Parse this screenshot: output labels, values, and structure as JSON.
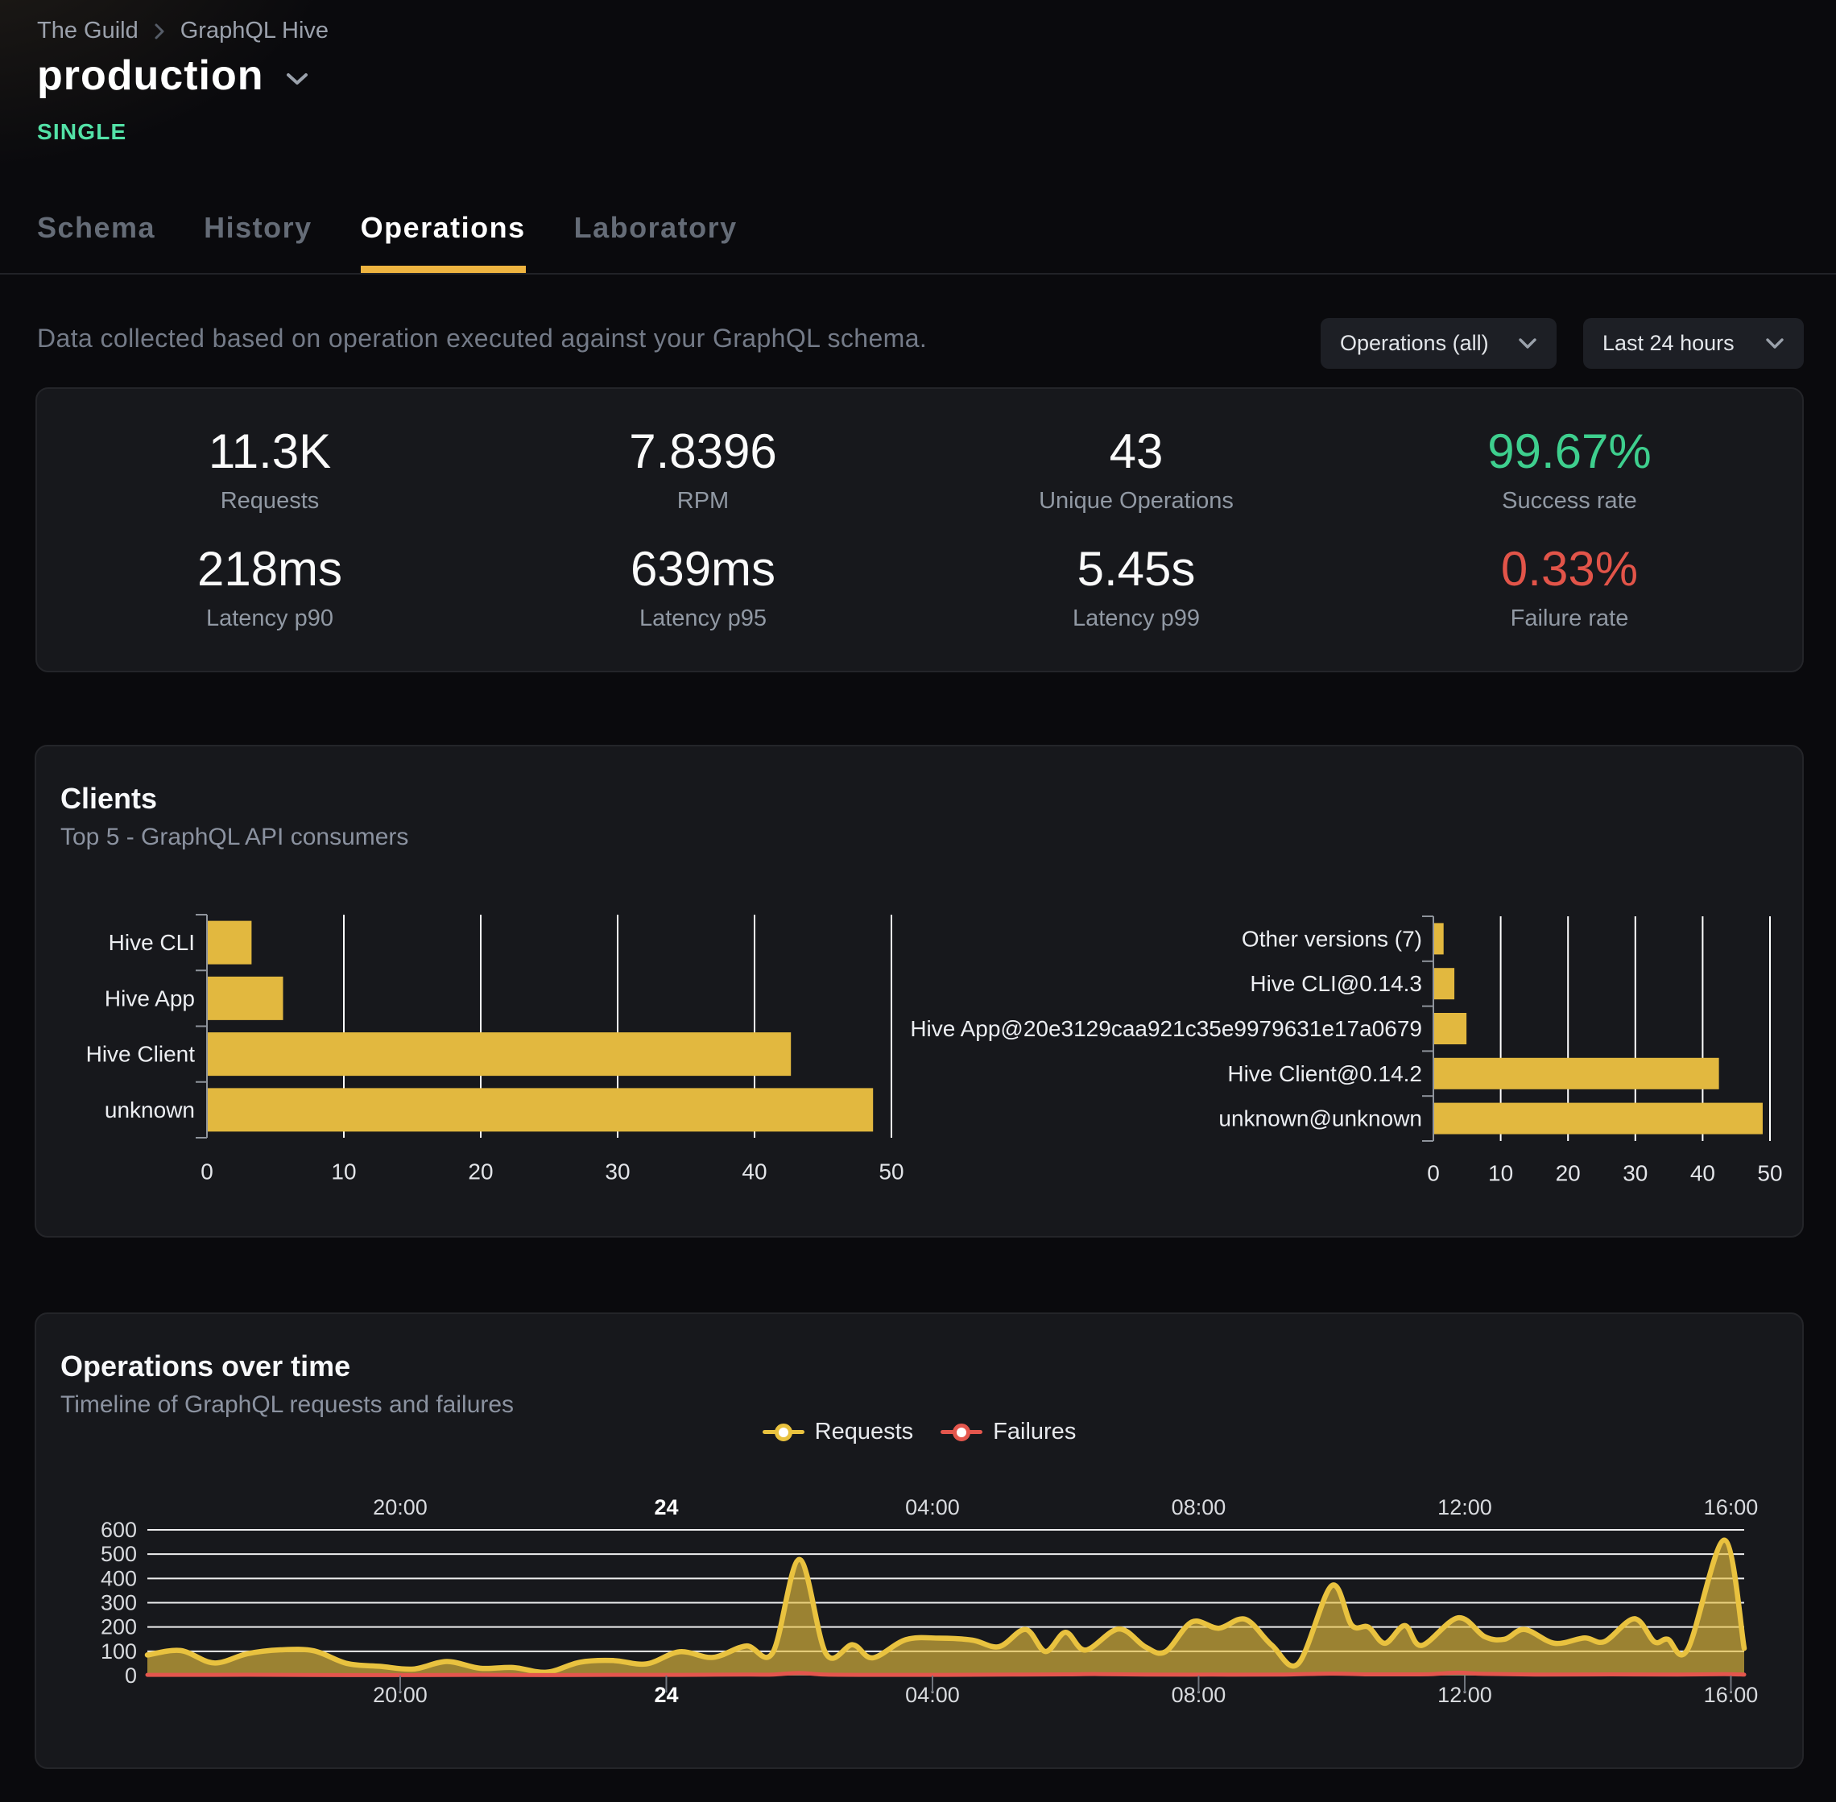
{
  "breadcrumb": {
    "items": [
      "The Guild",
      "GraphQL Hive"
    ]
  },
  "target": {
    "name": "production",
    "badge": "SINGLE"
  },
  "tabs": [
    {
      "label": "Schema",
      "active": false
    },
    {
      "label": "History",
      "active": false
    },
    {
      "label": "Operations",
      "active": true
    },
    {
      "label": "Laboratory",
      "active": false
    }
  ],
  "toolbar": {
    "description": "Data collected based on operation executed against your GraphQL schema.",
    "filters": [
      {
        "label": "Operations (all)"
      },
      {
        "label": "Last 24 hours"
      }
    ]
  },
  "stats": [
    {
      "value": "11.3K",
      "label": "Requests",
      "color": "#fafafa"
    },
    {
      "value": "7.8396",
      "label": "RPM",
      "color": "#fafafa"
    },
    {
      "value": "43",
      "label": "Unique Operations",
      "color": "#fafafa"
    },
    {
      "value": "99.67%",
      "label": "Success rate",
      "color": "#3ecf8e"
    },
    {
      "value": "218ms",
      "label": "Latency p90",
      "color": "#fafafa"
    },
    {
      "value": "639ms",
      "label": "Latency p95",
      "color": "#fafafa"
    },
    {
      "value": "5.45s",
      "label": "Latency p99",
      "color": "#fafafa"
    },
    {
      "value": "0.33%",
      "label": "Failure rate",
      "color": "#e25449"
    }
  ],
  "clients_section": {
    "title": "Clients",
    "subtitle": "Top 5 - GraphQL API consumers"
  },
  "operations_section": {
    "title": "Operations over time",
    "subtitle": "Timeline of GraphQL requests and failures"
  },
  "chart_data": [
    {
      "id": "clients-by-name",
      "type": "bar",
      "orientation": "horizontal",
      "categories": [
        "Hive CLI",
        "Hive App",
        "Hive Client",
        "unknown"
      ],
      "values": [
        3.2,
        5.5,
        42.6,
        48.6
      ],
      "xlim": [
        0,
        50
      ],
      "xticks": [
        0,
        10,
        20,
        30,
        40,
        50
      ],
      "bar_color": "#e2b83f",
      "grid": true
    },
    {
      "id": "clients-by-version",
      "type": "bar",
      "orientation": "horizontal",
      "categories": [
        "Other versions (7)",
        "Hive CLI@0.14.3",
        "Hive App@20e3129caa921c35e9979631e17a0679",
        "Hive Client@0.14.2",
        "unknown@unknown"
      ],
      "values": [
        1.4,
        3.0,
        4.8,
        42.3,
        48.8
      ],
      "xlim": [
        0,
        50
      ],
      "xticks": [
        0,
        10,
        20,
        30,
        40,
        50
      ],
      "bar_color": "#e2b83f",
      "grid": true
    },
    {
      "id": "operations-over-time",
      "type": "line",
      "title": "Operations over time",
      "x_axis": {
        "start_hour": 16.2,
        "end_hour": 40.2,
        "tick_hours": [
          20,
          24,
          28,
          32,
          36,
          40
        ],
        "tick_labels": [
          "20:00",
          "24",
          "04:00",
          "08:00",
          "12:00",
          "16:00"
        ],
        "emphasized_tick": "24"
      },
      "ylim": [
        0,
        600
      ],
      "yticks": [
        0,
        100,
        200,
        300,
        400,
        500,
        600
      ],
      "series": [
        {
          "name": "Requests",
          "color": "#e9c23f",
          "fill_opacity": 0.63,
          "points": [
            [
              16.2,
              85
            ],
            [
              16.7,
              103
            ],
            [
              17.2,
              52
            ],
            [
              17.7,
              90
            ],
            [
              18.2,
              106
            ],
            [
              18.7,
              102
            ],
            [
              19.2,
              50
            ],
            [
              19.7,
              38
            ],
            [
              20.2,
              27
            ],
            [
              20.7,
              58
            ],
            [
              21.2,
              30
            ],
            [
              21.7,
              33
            ],
            [
              22.2,
              14
            ],
            [
              22.7,
              55
            ],
            [
              23.2,
              62
            ],
            [
              23.7,
              48
            ],
            [
              24.2,
              98
            ],
            [
              24.7,
              75
            ],
            [
              25.2,
              122
            ],
            [
              25.6,
              95
            ],
            [
              26.0,
              478
            ],
            [
              26.4,
              90
            ],
            [
              26.8,
              127
            ],
            [
              27.1,
              73
            ],
            [
              27.6,
              148
            ],
            [
              28.1,
              154
            ],
            [
              28.6,
              146
            ],
            [
              29.0,
              119
            ],
            [
              29.4,
              190
            ],
            [
              29.7,
              99
            ],
            [
              30.0,
              178
            ],
            [
              30.3,
              105
            ],
            [
              30.8,
              192
            ],
            [
              31.2,
              118
            ],
            [
              31.5,
              98
            ],
            [
              31.9,
              221
            ],
            [
              32.3,
              195
            ],
            [
              32.7,
              232
            ],
            [
              33.1,
              125
            ],
            [
              33.5,
              50
            ],
            [
              34.0,
              370
            ],
            [
              34.3,
              208
            ],
            [
              34.55,
              200
            ],
            [
              34.8,
              133
            ],
            [
              35.1,
              206
            ],
            [
              35.35,
              124
            ],
            [
              35.9,
              238
            ],
            [
              36.3,
              160
            ],
            [
              36.6,
              150
            ],
            [
              36.9,
              190
            ],
            [
              37.35,
              133
            ],
            [
              37.8,
              155
            ],
            [
              38.1,
              140
            ],
            [
              38.55,
              234
            ],
            [
              38.85,
              139
            ],
            [
              39.05,
              150
            ],
            [
              39.35,
              108
            ],
            [
              39.9,
              558
            ],
            [
              40.2,
              112
            ]
          ]
        },
        {
          "name": "Failures",
          "color": "#e4564d",
          "fill_opacity": 0.45,
          "fill_color": "#8a93a5",
          "points": [
            [
              16.2,
              3
            ],
            [
              17.2,
              3
            ],
            [
              18.2,
              3
            ],
            [
              19.2,
              2
            ],
            [
              20.2,
              2
            ],
            [
              21.2,
              3
            ],
            [
              22.2,
              2
            ],
            [
              23.2,
              3
            ],
            [
              24.2,
              3
            ],
            [
              25.2,
              4
            ],
            [
              25.6,
              4
            ],
            [
              26.0,
              11
            ],
            [
              26.4,
              4
            ],
            [
              27.2,
              3
            ],
            [
              28.2,
              3
            ],
            [
              29.2,
              4
            ],
            [
              30.0,
              5
            ],
            [
              30.5,
              6
            ],
            [
              31.2,
              4
            ],
            [
              32.2,
              4
            ],
            [
              33.2,
              4
            ],
            [
              34.0,
              8
            ],
            [
              34.5,
              5
            ],
            [
              35.1,
              5
            ],
            [
              35.5,
              6
            ],
            [
              35.9,
              12
            ],
            [
              36.3,
              7
            ],
            [
              37.2,
              4
            ],
            [
              38.2,
              5
            ],
            [
              39.2,
              4
            ],
            [
              39.9,
              6
            ],
            [
              40.2,
              4
            ]
          ]
        }
      ],
      "legend": [
        "Requests",
        "Failures"
      ]
    }
  ]
}
